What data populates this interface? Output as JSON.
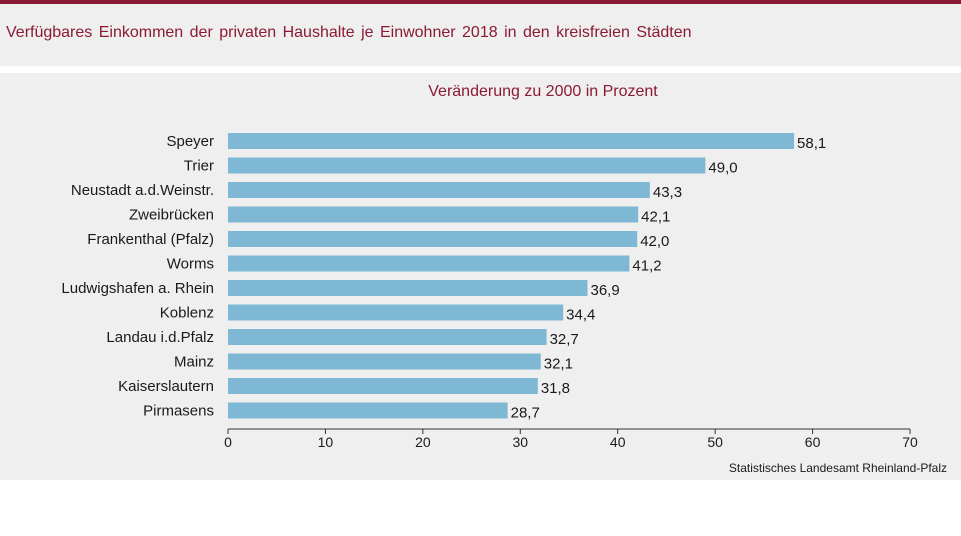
{
  "header": {
    "title": "Verfügbares Einkommen der privaten Haushalte je Einwohner 2018 in den kreisfreien Städten"
  },
  "colors": {
    "bar": "#7fb8d4",
    "accent": "#8b1a35",
    "panel": "#eeefee"
  },
  "chart_data": {
    "type": "bar",
    "orientation": "horizontal",
    "subtitle": "Veränderung zu 2000 in Prozent",
    "source": "Statistisches Landesamt Rheinland-Pfalz",
    "categories": [
      "Speyer",
      "Trier",
      "Neustadt a.d.Weinstr.",
      "Zweibrücken",
      "Frankenthal (Pfalz)",
      "Worms",
      "Ludwigshafen a. Rhein",
      "Koblenz",
      "Landau i.d.Pfalz",
      "Mainz",
      "Kaiserslautern",
      "Pirmasens"
    ],
    "values": [
      58.1,
      49.0,
      43.3,
      42.1,
      42.0,
      41.2,
      36.9,
      34.4,
      32.7,
      32.1,
      31.8,
      28.7
    ],
    "value_labels": [
      "58,1",
      "49,0",
      "43,3",
      "42,1",
      "42,0",
      "41,2",
      "36,9",
      "34,4",
      "32,7",
      "32,1",
      "31,8",
      "28,7"
    ],
    "xlim": [
      0,
      70
    ],
    "xticks": [
      0,
      10,
      20,
      30,
      40,
      50,
      60,
      70
    ],
    "grid": false,
    "legend": "none"
  }
}
